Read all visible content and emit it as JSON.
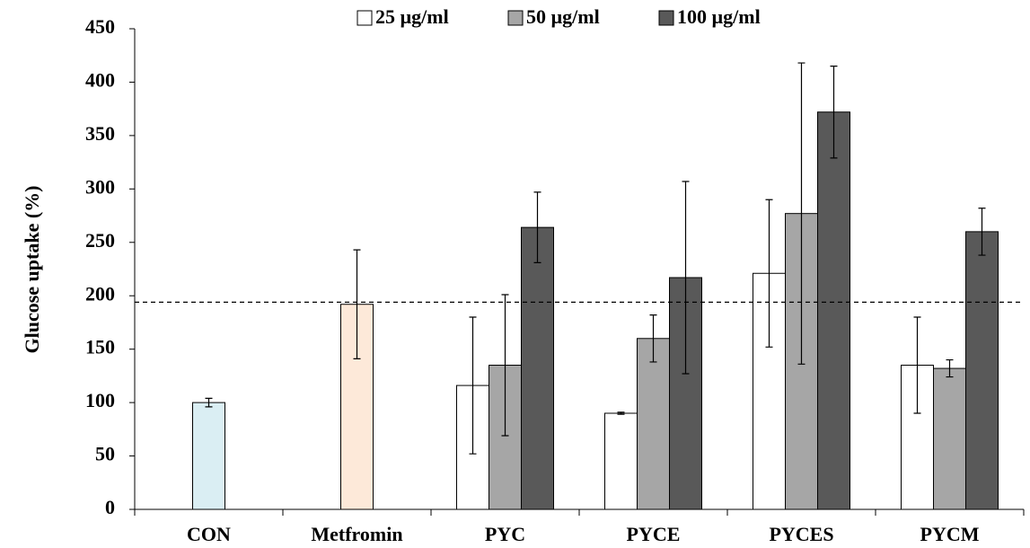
{
  "chart_data": {
    "type": "bar",
    "y_label": "Glucose uptake (%)",
    "categories": [
      "CON",
      "Metfromin",
      "PYC",
      "PYCE",
      "PYCES",
      "PYCM"
    ],
    "control": {
      "values": [
        100,
        192,
        null,
        null,
        null,
        null
      ],
      "errors": [
        4,
        51,
        null,
        null,
        null,
        null
      ],
      "colors": [
        "#daeef3",
        "#fde9d9",
        null,
        null,
        null,
        null
      ]
    },
    "series": [
      {
        "name": "25 µg/ml",
        "color": "#ffffff",
        "values": [
          null,
          null,
          116,
          90,
          221,
          135
        ],
        "errors": [
          null,
          null,
          64,
          1,
          69,
          45
        ]
      },
      {
        "name": "50 µg/ml",
        "color": "#a6a6a6",
        "values": [
          null,
          null,
          135,
          160,
          277,
          132
        ],
        "errors": [
          null,
          null,
          66,
          22,
          141,
          8
        ]
      },
      {
        "name": "100 µg/ml",
        "color": "#595959",
        "values": [
          null,
          null,
          264,
          217,
          372,
          260
        ],
        "errors": [
          null,
          null,
          33,
          90,
          43,
          22
        ]
      }
    ],
    "reference_line": 194,
    "ylim": [
      0,
      450
    ],
    "yticks": [
      0,
      50,
      100,
      150,
      200,
      250,
      300,
      350,
      400,
      450
    ],
    "legend": "top"
  }
}
